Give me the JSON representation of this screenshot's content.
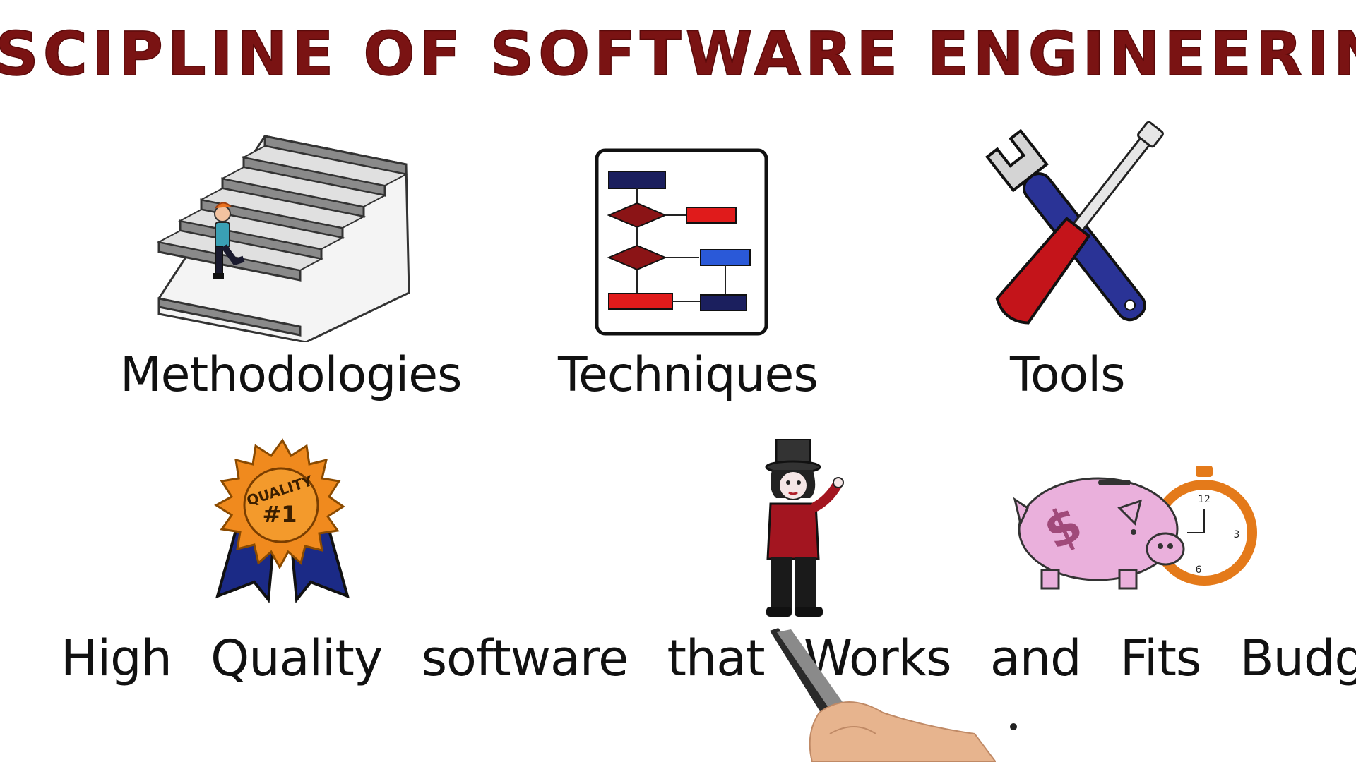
{
  "title": "DISCIPLINE OF SOFTWARE ENGINEERING",
  "top_row": {
    "methodologies": "Methodologies",
    "techniques": "Techniques",
    "tools": "Tools"
  },
  "ribbon_text": {
    "line1": "QUALITY",
    "line2": "#1"
  },
  "clock": {
    "n12": "12",
    "n3": "3",
    "n6": "6"
  },
  "sentence": {
    "w1": "High",
    "w2": "Quality",
    "w3": "software",
    "w4": "that",
    "w5": "Works",
    "w6": "and",
    "w7": "Fits",
    "w8": "Budget"
  },
  "colors": {
    "title": "#7a1313",
    "navy": "#1b1f5e",
    "red": "#c4141a",
    "orange": "#f08a1e",
    "pink": "#e8a8d6"
  }
}
